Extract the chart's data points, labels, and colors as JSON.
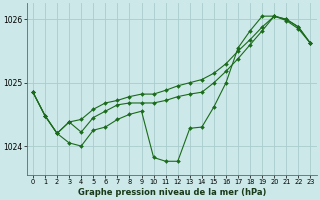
{
  "title": "Graphe pression niveau de la mer (hPa)",
  "background_color": "#cce8e8",
  "grid_color": "#aacccc",
  "line_color": "#1a6b1a",
  "marker_color": "#1a6b1a",
  "ylim": [
    1023.55,
    1026.25
  ],
  "xlim": [
    -0.5,
    23.5
  ],
  "yticks": [
    1024,
    1025,
    1026
  ],
  "xticks": [
    0,
    1,
    2,
    3,
    4,
    5,
    6,
    7,
    8,
    9,
    10,
    11,
    12,
    13,
    14,
    15,
    16,
    17,
    18,
    19,
    20,
    21,
    22,
    23
  ],
  "series1": {
    "x": [
      0,
      1,
      2,
      3,
      4,
      5,
      6,
      7,
      8,
      9,
      10,
      11,
      12,
      13,
      14,
      15,
      16,
      17,
      18,
      19,
      20,
      21,
      22,
      23
    ],
    "y": [
      1024.85,
      1024.48,
      1024.2,
      1024.05,
      1024.0,
      1024.25,
      1024.3,
      1024.42,
      1024.5,
      1024.55,
      1023.82,
      1023.76,
      1023.76,
      1024.28,
      1024.3,
      1024.62,
      1025.0,
      1025.55,
      1025.82,
      1026.05,
      1026.05,
      1025.98,
      1025.85,
      1025.62
    ]
  },
  "series2": {
    "x": [
      0,
      1,
      2,
      3,
      4,
      5,
      6,
      7,
      8,
      9,
      10,
      11,
      12,
      13,
      14,
      15,
      16,
      17,
      18,
      19,
      20,
      21,
      22,
      23
    ],
    "y": [
      1024.85,
      1024.48,
      1024.2,
      1024.38,
      1024.42,
      1024.58,
      1024.68,
      1024.72,
      1024.78,
      1024.82,
      1024.82,
      1024.88,
      1024.95,
      1025.0,
      1025.05,
      1025.15,
      1025.3,
      1025.5,
      1025.68,
      1025.88,
      1026.05,
      1026.0,
      1025.88,
      1025.62
    ]
  },
  "series3": {
    "x": [
      0,
      1,
      2,
      3,
      4,
      5,
      6,
      7,
      8,
      9,
      10,
      11,
      12,
      13,
      14,
      15,
      16,
      17,
      18,
      19,
      20,
      21,
      22,
      23
    ],
    "y": [
      1024.85,
      1024.48,
      1024.2,
      1024.38,
      1024.22,
      1024.45,
      1024.55,
      1024.65,
      1024.68,
      1024.68,
      1024.68,
      1024.72,
      1024.78,
      1024.82,
      1024.85,
      1025.0,
      1025.18,
      1025.38,
      1025.6,
      1025.82,
      1026.05,
      1026.0,
      1025.88,
      1025.62
    ]
  }
}
